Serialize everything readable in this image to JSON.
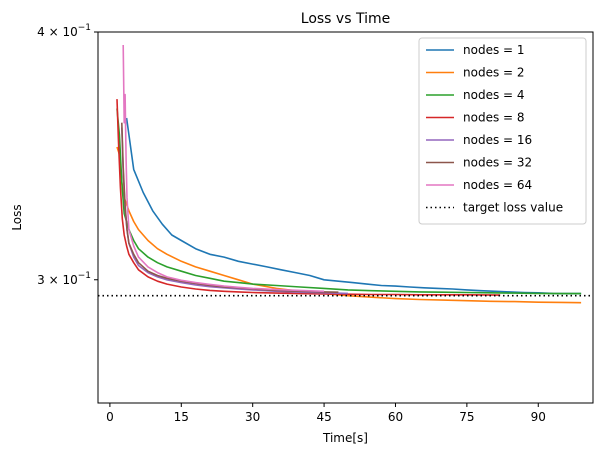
{
  "chart_data": {
    "type": "line",
    "title": "Loss vs Time",
    "xlabel": "Time[s]",
    "ylabel": "Loss",
    "xlim": [
      -2.5,
      101.5
    ],
    "ylim": [
      0.26,
      0.4
    ],
    "yscale": "log",
    "xticks": [
      0,
      15,
      30,
      45,
      60,
      75,
      90
    ],
    "xtick_labels": [
      "0",
      "15",
      "30",
      "45",
      "60",
      "75",
      "90"
    ],
    "yticks": [
      0.3,
      0.4
    ],
    "ytick_labels": [
      {
        "mantissa": "3",
        "base": "10",
        "exp": "−1"
      },
      {
        "mantissa": "4",
        "base": "10",
        "exp": "−1"
      }
    ],
    "grid": false,
    "legend_position": "top-right",
    "series": [
      {
        "name": "nodes = 1",
        "color": "#1f77b4",
        "x": [
          3.5,
          5,
          7,
          9,
          11,
          13,
          15,
          18,
          21,
          24,
          27,
          30,
          33,
          36,
          39,
          42,
          45,
          48,
          51,
          54,
          57,
          60,
          63,
          66,
          69,
          72,
          75,
          78,
          81,
          84,
          87,
          90,
          93,
          96,
          99
        ],
        "y": [
          0.362,
          0.341,
          0.332,
          0.325,
          0.32,
          0.316,
          0.314,
          0.311,
          0.309,
          0.308,
          0.3065,
          0.3055,
          0.3045,
          0.3035,
          0.3025,
          0.3015,
          0.3,
          0.2995,
          0.299,
          0.2985,
          0.298,
          0.2978,
          0.2975,
          0.2972,
          0.297,
          0.2968,
          0.2965,
          0.2962,
          0.296,
          0.2958,
          0.2956,
          0.2955,
          0.2953,
          0.2952,
          0.2952
        ]
      },
      {
        "name": "nodes = 2",
        "color": "#ff7f0e",
        "x": [
          1.5,
          2,
          2.5,
          3,
          4,
          5,
          6,
          8,
          10,
          12,
          15,
          18,
          21,
          24,
          27,
          30,
          35,
          40,
          45,
          50,
          55,
          60,
          65,
          70,
          75,
          80,
          85,
          90,
          95,
          99
        ],
        "y": [
          0.35,
          0.347,
          0.336,
          0.33,
          0.325,
          0.321,
          0.318,
          0.314,
          0.311,
          0.309,
          0.3065,
          0.3045,
          0.303,
          0.3015,
          0.3,
          0.2985,
          0.297,
          0.296,
          0.2952,
          0.2945,
          0.294,
          0.2935,
          0.2932,
          0.293,
          0.2928,
          0.2926,
          0.2925,
          0.2923,
          0.2922,
          0.2921
        ]
      },
      {
        "name": "nodes = 4",
        "color": "#2ca02c",
        "x": [
          1.5,
          2,
          2.5,
          3,
          4,
          5,
          6,
          8,
          10,
          12,
          15,
          18,
          21,
          24,
          27,
          30,
          35,
          40,
          45,
          50,
          55,
          60,
          65,
          70,
          75,
          80,
          85,
          90,
          95,
          99
        ],
        "y": [
          0.366,
          0.355,
          0.336,
          0.324,
          0.318,
          0.314,
          0.311,
          0.308,
          0.306,
          0.3045,
          0.303,
          0.3015,
          0.3005,
          0.2995,
          0.299,
          0.2985,
          0.298,
          0.2975,
          0.297,
          0.2965,
          0.2962,
          0.296,
          0.2958,
          0.2957,
          0.2956,
          0.2955,
          0.2954,
          0.2953,
          0.2952,
          0.2952
        ]
      },
      {
        "name": "nodes = 8",
        "color": "#d62728",
        "x": [
          1.5,
          1.8,
          2.2,
          2.6,
          3,
          3.5,
          4,
          5,
          6,
          8,
          10,
          12,
          15,
          18,
          21,
          24,
          27,
          30,
          35,
          40,
          45,
          50,
          55,
          60,
          65,
          70,
          75,
          82
        ],
        "y": [
          0.37,
          0.352,
          0.334,
          0.322,
          0.316,
          0.312,
          0.309,
          0.306,
          0.3035,
          0.301,
          0.2995,
          0.2985,
          0.2975,
          0.2968,
          0.2963,
          0.296,
          0.2958,
          0.2956,
          0.2954,
          0.2952,
          0.2951,
          0.295,
          0.2949,
          0.2949,
          0.2948,
          0.2948,
          0.2948,
          0.2947
        ]
      },
      {
        "name": "nodes = 16",
        "color": "#9467bd",
        "x": [
          2.5,
          2.8,
          3.2,
          3.6,
          4,
          5,
          6,
          8,
          10,
          12,
          15,
          18,
          21,
          24,
          27,
          30,
          35,
          40,
          45,
          50
        ],
        "y": [
          0.358,
          0.34,
          0.326,
          0.318,
          0.313,
          0.308,
          0.305,
          0.3025,
          0.301,
          0.3,
          0.299,
          0.2982,
          0.2976,
          0.2972,
          0.2968,
          0.2965,
          0.296,
          0.2957,
          0.2955,
          0.2953
        ]
      },
      {
        "name": "nodes = 32",
        "color": "#8c564b",
        "x": [
          2.5,
          2.8,
          3.2,
          3.6,
          4,
          5,
          6,
          8,
          10,
          12,
          15,
          18,
          21,
          24,
          27,
          30,
          35,
          40,
          45,
          48
        ],
        "y": [
          0.36,
          0.342,
          0.327,
          0.318,
          0.313,
          0.309,
          0.306,
          0.303,
          0.3015,
          0.3005,
          0.2995,
          0.2987,
          0.298,
          0.2975,
          0.2972,
          0.2968,
          0.2963,
          0.296,
          0.2958,
          0.2957
        ]
      },
      {
        "name": "nodes = 64",
        "color": "#e377c2",
        "x": [
          2.8,
          3.0,
          3.2,
          3.4,
          3.6,
          4,
          5,
          6,
          8,
          10,
          12,
          15,
          18,
          21,
          24,
          27,
          30,
          35,
          40,
          45
        ],
        "y": [
          0.394,
          0.36,
          0.372,
          0.345,
          0.33,
          0.318,
          0.312,
          0.308,
          0.3045,
          0.3025,
          0.301,
          0.2998,
          0.299,
          0.2984,
          0.2978,
          0.2974,
          0.297,
          0.2966,
          0.2963,
          0.296
        ]
      },
      {
        "name": "target loss value",
        "color": "#000000",
        "style": "dotted",
        "x": [
          -2.5,
          101.5
        ],
        "y": [
          0.2945,
          0.2945
        ]
      }
    ]
  }
}
